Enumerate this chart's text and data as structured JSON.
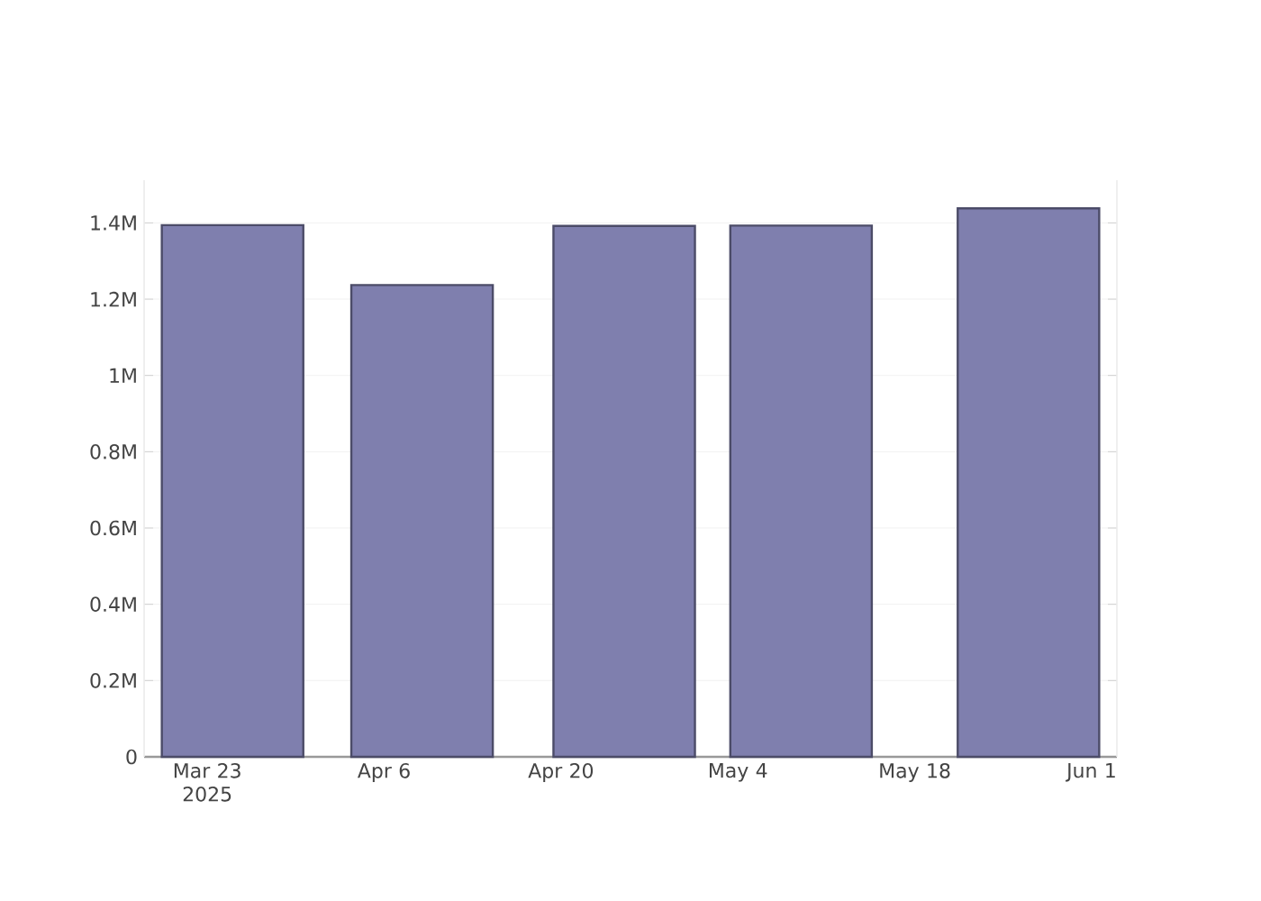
{
  "chart_data": {
    "type": "bar",
    "x": [
      "2025-03-25",
      "2025-04-09",
      "2025-04-25",
      "2025-05-09",
      "2025-05-27"
    ],
    "values": [
      1394000,
      1237000,
      1392000,
      1393000,
      1438000
    ],
    "color": "#7f7fae",
    "xlim": [
      "2025-03-18",
      "2025-06-03"
    ],
    "xticks": [
      {
        "value": "2025-03-23",
        "label": "Mar 23 2025"
      },
      {
        "value": "2025-04-06",
        "label": "Apr 6"
      },
      {
        "value": "2025-04-20",
        "label": "Apr 20"
      },
      {
        "value": "2025-05-04",
        "label": "May 4"
      },
      {
        "value": "2025-05-18",
        "label": "May 18"
      },
      {
        "value": "2025-06-01",
        "label": "Jun 1"
      }
    ],
    "yticks": [
      0,
      {
        "value": 200000,
        "label": "0.2M"
      },
      {
        "value": 400000,
        "label": "0.4M"
      },
      {
        "value": 600000,
        "label": "0.6M"
      },
      {
        "value": 800000,
        "label": "0.8M"
      },
      {
        "value": 1000000,
        "label": "1M"
      },
      {
        "value": 1200000,
        "label": "1.2M"
      },
      {
        "value": 1400000,
        "label": "1.4M"
      }
    ],
    "ylim": [
      0,
      1512000
    ],
    "grid": "y"
  }
}
